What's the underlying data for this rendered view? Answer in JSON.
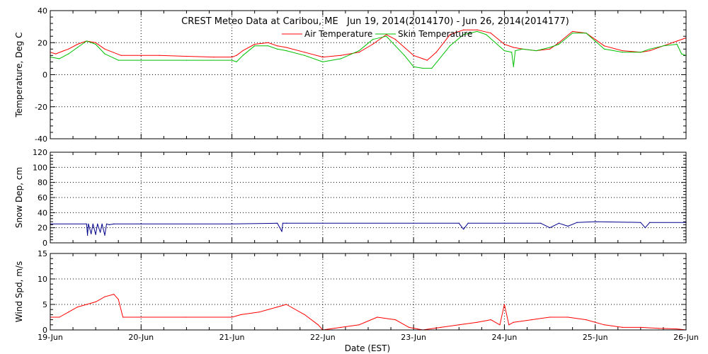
{
  "chart_data": [
    {
      "type": "line",
      "title": "CREST Meteo Data at Caribou, ME   Jun 19, 2014(2014170) - Jun 26, 2014(2014177)",
      "ylabel": "Temperature, Deg C",
      "ylim": [
        -40,
        40
      ],
      "yticks": [
        -40,
        -20,
        0,
        20,
        40
      ],
      "grid": true,
      "legend": "top-center",
      "series": [
        {
          "name": "Air Temperature",
          "color": "#ff0000",
          "x": [
            0,
            0.06,
            0.15,
            0.2,
            0.3,
            0.4,
            0.5,
            0.6,
            0.78,
            1.0,
            1.2,
            1.5,
            1.8,
            2.0,
            2.05,
            2.12,
            2.25,
            2.4,
            2.5,
            2.6,
            2.8,
            3.0,
            3.2,
            3.4,
            3.55,
            3.7,
            3.8,
            3.9,
            4.0,
            4.1,
            4.15,
            4.25,
            4.4,
            4.55,
            4.7,
            4.85,
            5.0,
            5.1,
            5.2,
            5.35,
            5.5,
            5.6,
            5.75,
            5.9,
            6.0,
            6.1,
            6.3,
            6.5,
            6.6,
            6.75,
            6.9,
            7.0
          ],
          "y": [
            14,
            13,
            15,
            16,
            19,
            21,
            20,
            16,
            12,
            12,
            12,
            11.5,
            11,
            11,
            12,
            15,
            19,
            20,
            18,
            17,
            14,
            11,
            12,
            14,
            19,
            25,
            22,
            17,
            12,
            10,
            9,
            14,
            25,
            28,
            28,
            26,
            19,
            17,
            16,
            15,
            16,
            20,
            27,
            26,
            22,
            18,
            15,
            14,
            15,
            18,
            21,
            23
          ]
        },
        {
          "name": "Skin Temperature",
          "color": "#00c000",
          "x": [
            0,
            0.1,
            0.2,
            0.3,
            0.4,
            0.5,
            0.6,
            0.75,
            1.0,
            1.5,
            2.0,
            2.05,
            2.12,
            2.25,
            2.4,
            2.5,
            2.6,
            2.8,
            3.0,
            3.2,
            3.4,
            3.55,
            3.7,
            3.8,
            3.9,
            4.0,
            4.1,
            4.2,
            4.4,
            4.55,
            4.7,
            4.8,
            5.0,
            5.08,
            5.1,
            5.12,
            5.2,
            5.35,
            5.5,
            5.6,
            5.75,
            5.9,
            6.0,
            6.1,
            6.3,
            6.5,
            6.6,
            6.75,
            6.9,
            6.95,
            7.0
          ],
          "y": [
            11,
            10,
            13,
            17,
            21,
            19,
            13,
            9,
            9,
            9,
            9,
            8,
            12,
            18,
            18,
            16,
            15,
            12,
            8,
            10,
            15,
            22,
            24,
            18,
            12,
            5,
            4,
            4,
            18,
            25,
            27,
            25,
            15,
            14,
            5,
            15,
            16,
            15,
            17,
            19,
            26,
            26,
            21,
            16,
            14,
            14,
            16,
            18,
            19,
            13,
            12
          ]
        }
      ]
    },
    {
      "type": "line",
      "ylabel": "Snow Dep, cm",
      "ylim": [
        0,
        120
      ],
      "yticks": [
        0,
        20,
        40,
        60,
        80,
        100,
        120
      ],
      "grid": true,
      "series": [
        {
          "color": "#00008b",
          "x": [
            0,
            0.4,
            0.41,
            0.42,
            0.45,
            0.47,
            0.5,
            0.52,
            0.55,
            0.57,
            0.6,
            0.62,
            0.65,
            0.7,
            1.0,
            2.0,
            2.5,
            2.55,
            2.56,
            2.6,
            3.0,
            4.0,
            4.5,
            4.55,
            4.6,
            5.0,
            5.4,
            5.5,
            5.6,
            5.7,
            5.8,
            6.0,
            6.5,
            6.55,
            6.6,
            7.0
          ],
          "y": [
            25,
            25,
            10,
            25,
            12,
            25,
            11,
            25,
            14,
            25,
            10,
            25,
            24,
            25,
            25,
            25,
            26,
            15,
            26,
            26,
            26,
            26,
            26,
            18,
            26,
            26,
            26,
            20,
            26,
            22,
            27,
            28,
            27,
            20,
            27,
            27
          ]
        }
      ]
    },
    {
      "type": "line",
      "xlabel": "Date (EST)",
      "ylabel": "Wind Spd, m/s",
      "ylim": [
        0,
        15
      ],
      "yticks": [
        0,
        5,
        10,
        15
      ],
      "xticks": [
        "19-Jun",
        "20-Jun",
        "21-Jun",
        "22-Jun",
        "23-Jun",
        "24-Jun",
        "25-Jun",
        "26-Jun"
      ],
      "grid": true,
      "series": [
        {
          "color": "#ff0000",
          "x": [
            0,
            0.1,
            0.2,
            0.3,
            0.4,
            0.5,
            0.6,
            0.7,
            0.75,
            0.8,
            1.0,
            1.5,
            2.0,
            2.1,
            2.3,
            2.5,
            2.6,
            2.8,
            2.95,
            3.0,
            3.2,
            3.4,
            3.6,
            3.8,
            3.95,
            4.1,
            4.3,
            4.5,
            4.7,
            4.85,
            4.95,
            5.0,
            5.05,
            5.1,
            5.3,
            5.5,
            5.7,
            5.9,
            6.1,
            6.3,
            6.5,
            6.7,
            6.9,
            7.0
          ],
          "y": [
            2.5,
            2.5,
            3.5,
            4.5,
            5,
            5.5,
            6.5,
            7,
            6,
            2.5,
            2.5,
            2.5,
            2.5,
            3,
            3.5,
            4.5,
            5,
            3,
            1,
            0,
            0.5,
            1,
            2.5,
            2,
            0.5,
            0,
            0.5,
            1,
            1.5,
            2,
            1,
            5,
            1,
            1.5,
            2,
            2.5,
            2.5,
            2,
            1,
            0.5,
            0.5,
            0.3,
            0.2,
            0
          ]
        }
      ]
    }
  ]
}
